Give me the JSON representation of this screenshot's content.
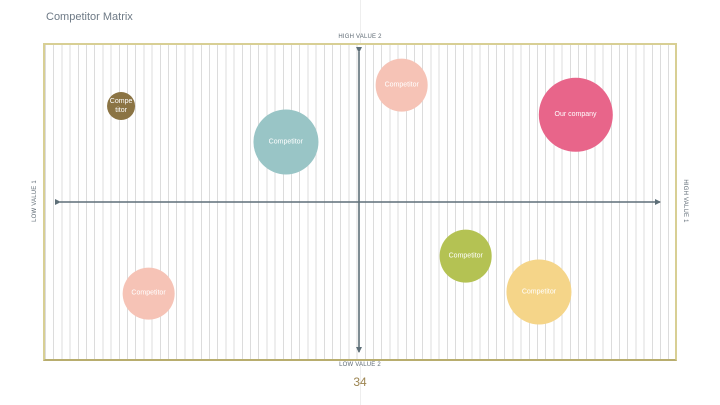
{
  "slide": {
    "title": "Competitor Matrix",
    "page_number": "34"
  },
  "axes": {
    "top": "HIGH VALUE 2",
    "bottom": "LOW VALUE 2",
    "left": "LOW VALUE 1",
    "right": "HIGH VALUE 1"
  },
  "bubbles": [
    {
      "label": "Compe\ntitor",
      "color": "#8b7444",
      "value_1": -0.78,
      "value_2": 0.64,
      "size": 0.09
    },
    {
      "label": "Competitor",
      "color": "#f6c3b6",
      "value_1": 0.14,
      "value_2": 0.78,
      "size": 0.17
    },
    {
      "label": "Our company",
      "color": "#e8658a",
      "value_1": 0.71,
      "value_2": 0.58,
      "size": 0.24
    },
    {
      "label": "Competitor",
      "color": "#99c5c6",
      "value_1": -0.24,
      "value_2": 0.4,
      "size": 0.21
    },
    {
      "label": "Competitor",
      "color": "#b4c253",
      "value_1": 0.35,
      "value_2": -0.36,
      "size": 0.17
    },
    {
      "label": "Competitor",
      "color": "#f6c3b6",
      "value_1": -0.69,
      "value_2": -0.61,
      "size": 0.17
    },
    {
      "label": "Competitor",
      "color": "#f5d589",
      "value_1": 0.59,
      "value_2": -0.6,
      "size": 0.21
    }
  ]
}
